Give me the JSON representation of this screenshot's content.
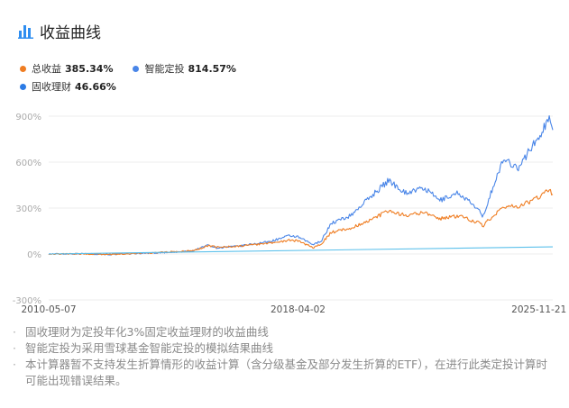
{
  "header": {
    "title": "收益曲线",
    "icon": "bar-chart-icon"
  },
  "legend": [
    {
      "name": "总收益",
      "value": "385.34%",
      "color": "#ef7d22"
    },
    {
      "name": "智能定投",
      "value": "814.57%",
      "color": "#4a86e8"
    },
    {
      "name": "固收理财",
      "value": "46.66%",
      "color": "#2c7be5"
    }
  ],
  "chart_data": {
    "type": "line",
    "x_type": "date",
    "x_ticks": [
      "2010-05-07",
      "2018-04-02",
      "2025-11-21"
    ],
    "y_ticks": [
      "900%",
      "600%",
      "300%",
      "0%",
      "-300%"
    ],
    "y_tick_values": [
      900,
      600,
      300,
      0,
      -300
    ],
    "ylim": [
      -300,
      900
    ],
    "xlim": [
      "2010-05-07",
      "2026-04-30"
    ],
    "grid": true,
    "series": [
      {
        "name": "智能定投",
        "color": "#4a86e8",
        "x": [
          "2010-05-07",
          "2011-05-01",
          "2012-05-01",
          "2013-05-01",
          "2014-05-01",
          "2014-12-01",
          "2015-06-01",
          "2015-09-01",
          "2016-05-01",
          "2017-05-01",
          "2018-01-01",
          "2018-04-02",
          "2018-10-01",
          "2019-01-01",
          "2019-04-20",
          "2019-12-01",
          "2020-07-10",
          "2021-02-15",
          "2021-09-01",
          "2022-04-01",
          "2022-10-01",
          "2023-05-01",
          "2023-10-01",
          "2024-01-15",
          "2024-02-05",
          "2024-05-01",
          "2024-10-08",
          "2025-04-08",
          "2025-08-01",
          "2025-11-21",
          "2026-01-20",
          "2026-03-20",
          "2026-04-30"
        ],
        "values": [
          0,
          2,
          -3,
          5,
          10,
          20,
          60,
          40,
          50,
          80,
          120,
          110,
          60,
          90,
          200,
          250,
          370,
          480,
          400,
          430,
          350,
          400,
          330,
          270,
          230,
          380,
          620,
          560,
          680,
          760,
          830,
          880,
          810
        ]
      },
      {
        "name": "总收益",
        "color": "#ef7d22",
        "x": [
          "2010-05-07",
          "2011-05-01",
          "2012-05-01",
          "2013-05-01",
          "2014-05-01",
          "2014-12-01",
          "2015-06-01",
          "2015-09-01",
          "2016-05-01",
          "2017-05-01",
          "2018-01-01",
          "2018-04-02",
          "2018-10-01",
          "2019-01-01",
          "2019-04-20",
          "2019-12-01",
          "2020-07-10",
          "2021-02-15",
          "2021-09-01",
          "2022-04-01",
          "2022-10-01",
          "2023-05-01",
          "2023-10-01",
          "2024-01-15",
          "2024-02-05",
          "2024-05-01",
          "2024-10-08",
          "2025-04-08",
          "2025-08-01",
          "2025-11-21",
          "2026-01-20",
          "2026-03-20",
          "2026-04-30"
        ],
        "values": [
          0,
          1,
          -2,
          5,
          15,
          20,
          55,
          45,
          50,
          70,
          90,
          85,
          40,
          70,
          140,
          170,
          220,
          280,
          250,
          270,
          230,
          250,
          220,
          200,
          180,
          230,
          310,
          310,
          340,
          370,
          400,
          410,
          390
        ]
      },
      {
        "name": "固收理财",
        "color": "#5bc0eb",
        "x": [
          "2010-05-07",
          "2026-04-30"
        ],
        "values": [
          0,
          46.66
        ]
      }
    ]
  },
  "notes": [
    "固收理财为定投年化3%固定收益理财的收益曲线",
    "智能定投为采用雪球基金智能定投的模拟结果曲线",
    "本计算器暂不支持发生折算情形的收益计算（含分级基金及部分发生折算的ETF），在进行此类定投计算时可能出现错误结果。"
  ]
}
